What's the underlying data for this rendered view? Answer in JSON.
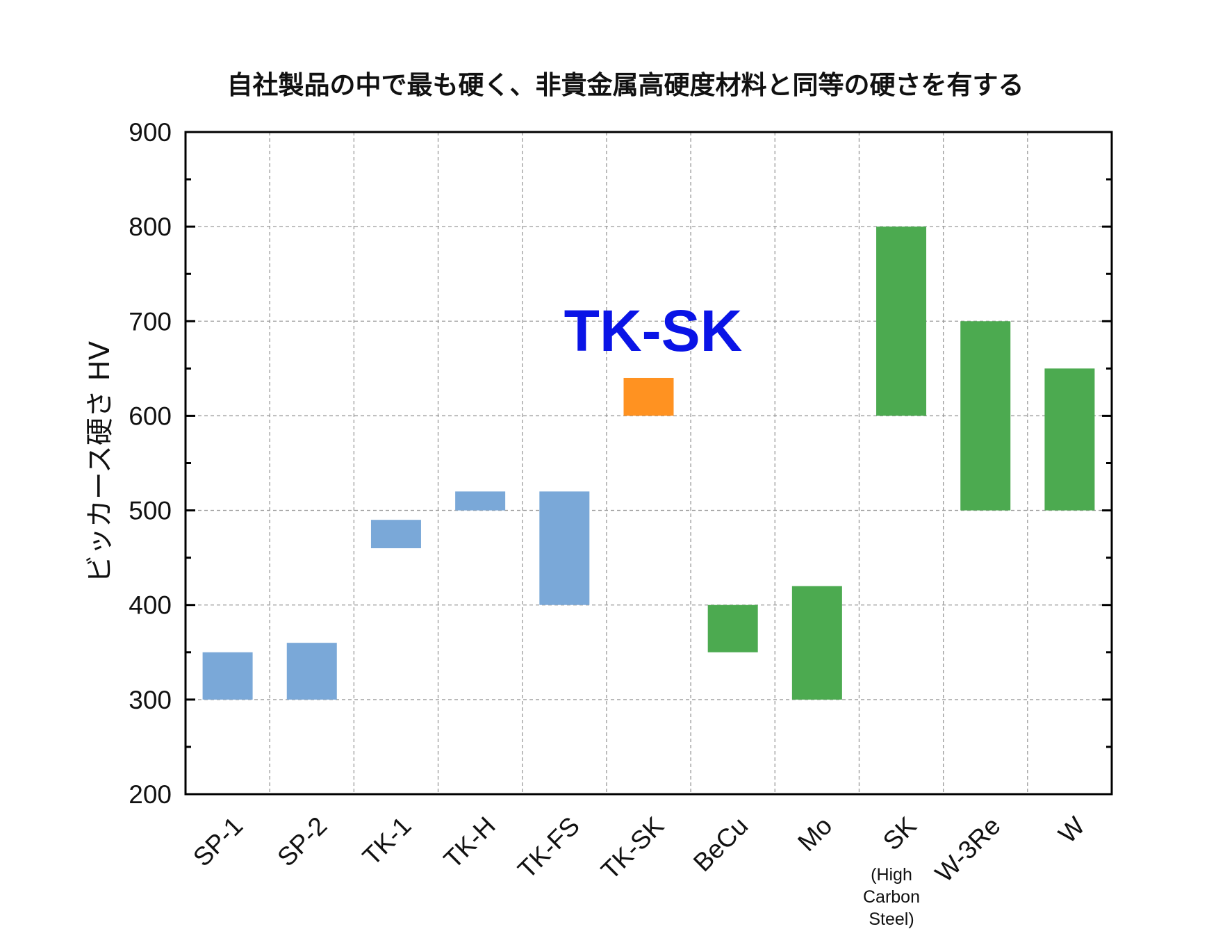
{
  "chart_data": {
    "type": "bar",
    "title": "自社製品の中で最も硬く、非貴金属高硬度材料と同等の硬さを有する",
    "xlabel": "",
    "ylabel": "ビッカース硬さ HV",
    "ylim": [
      200,
      900
    ],
    "yticks": [
      200,
      300,
      400,
      500,
      600,
      700,
      800,
      900
    ],
    "grid": true,
    "categories": [
      "SP-1",
      "SP-2",
      "TK-1",
      "TK-H",
      "TK-FS",
      "TK-SK",
      "BeCu",
      "Mo",
      "SK",
      "W-3Re",
      "W"
    ],
    "bars": [
      {
        "name": "SP-1",
        "low": 300,
        "high": 350,
        "group": "own"
      },
      {
        "name": "SP-2",
        "low": 300,
        "high": 360,
        "group": "own"
      },
      {
        "name": "TK-1",
        "low": 460,
        "high": 490,
        "group": "own"
      },
      {
        "name": "TK-H",
        "low": 500,
        "high": 520,
        "group": "own"
      },
      {
        "name": "TK-FS",
        "low": 400,
        "high": 520,
        "group": "own"
      },
      {
        "name": "TK-SK",
        "low": 600,
        "high": 640,
        "group": "highlight"
      },
      {
        "name": "BeCu",
        "low": 350,
        "high": 400,
        "group": "other"
      },
      {
        "name": "Mo",
        "low": 300,
        "high": 420,
        "group": "other"
      },
      {
        "name": "SK",
        "low": 600,
        "high": 800,
        "group": "other"
      },
      {
        "name": "W-3Re",
        "low": 500,
        "high": 700,
        "group": "other"
      },
      {
        "name": "W",
        "low": 500,
        "high": 650,
        "group": "other"
      }
    ],
    "colors": {
      "own": "#7aa8d8",
      "highlight": "#ff9221",
      "other": "#4caa50",
      "annotation": "#0a14e6"
    },
    "annotation": "TK-SK",
    "sk_note": [
      "(High",
      "Carbon",
      "Steel)"
    ]
  }
}
